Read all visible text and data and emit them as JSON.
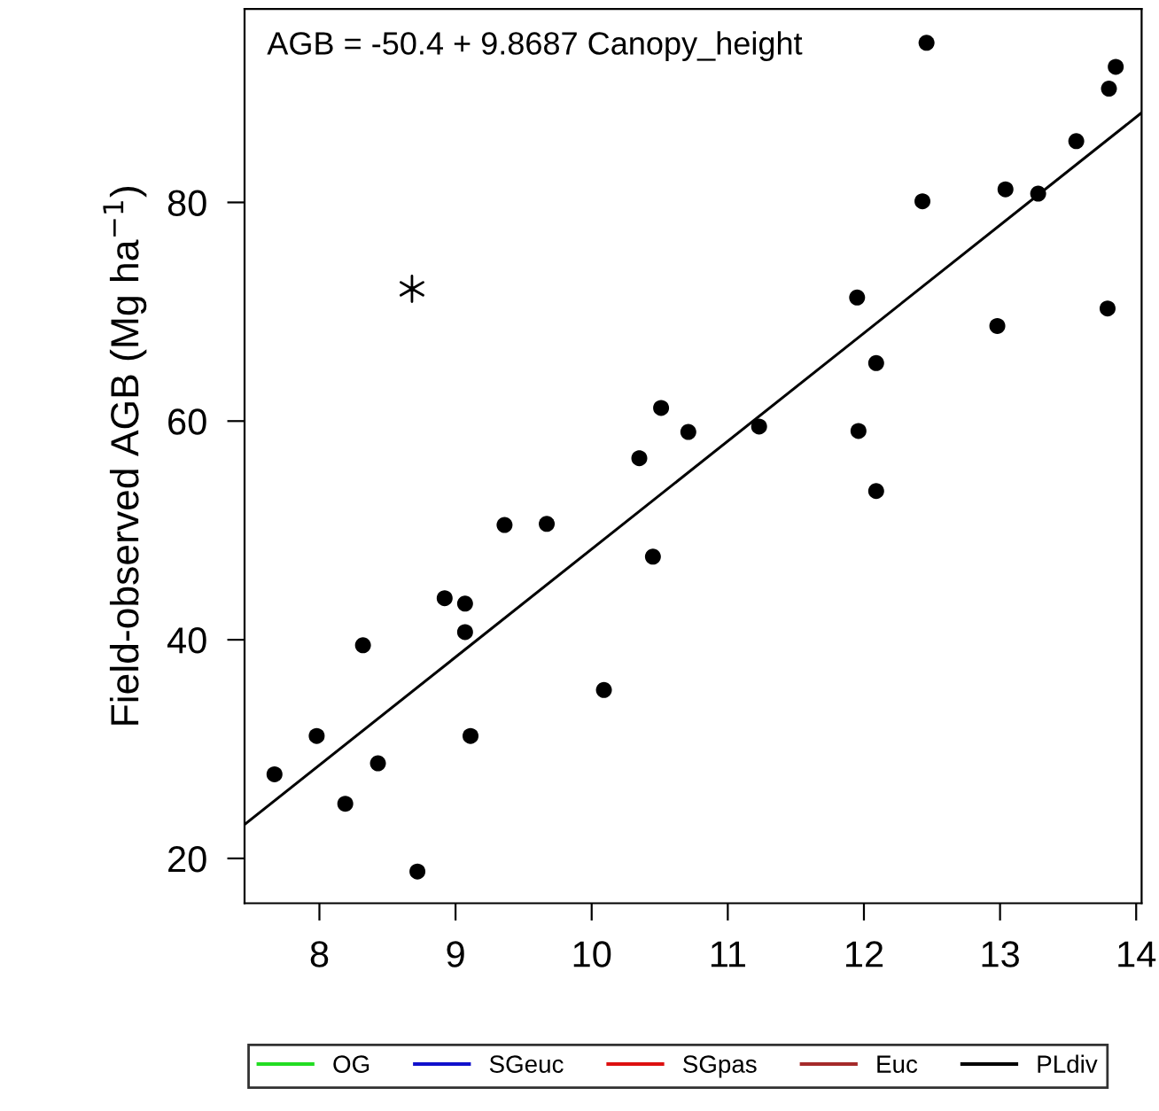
{
  "chart_data": {
    "type": "scatter",
    "ylabel": "Field-observed AGB (Mg ha$^{−1}$)",
    "annotations": [
      "AGB = -50.4 + 9.8687 Canopy_height"
    ],
    "xlim": [
      7.45,
      14.04
    ],
    "ylim": [
      15.9,
      97.7
    ],
    "xticks": [
      8,
      9,
      10,
      11,
      12,
      13,
      14
    ],
    "yticks": [
      20,
      40,
      60,
      80
    ],
    "grid": false,
    "legend": "bottom",
    "series": [
      {
        "marker": "circle",
        "color": "#000000",
        "x": [
          12.46,
          13.85,
          13.8,
          13.56,
          12.43,
          13.04,
          13.28,
          11.95,
          13.79,
          12.98,
          12.09,
          10.51,
          10.71,
          11.23,
          11.96,
          10.35,
          12.09,
          9.36,
          9.67,
          10.45,
          8.92,
          9.07,
          9.07,
          8.32,
          10.09,
          7.98,
          9.11,
          7.67,
          8.43,
          8.19,
          8.72
        ],
        "values": [
          94.6,
          92.4,
          90.4,
          85.6,
          80.1,
          81.2,
          80.8,
          71.3,
          70.3,
          68.7,
          65.3,
          61.2,
          59.0,
          59.5,
          59.1,
          56.6,
          53.6,
          50.5,
          50.6,
          47.6,
          43.8,
          43.3,
          40.7,
          39.5,
          35.4,
          31.2,
          31.2,
          27.7,
          28.7,
          25.0,
          18.8
        ]
      },
      {
        "marker": "cross",
        "color": "#000000",
        "x": [
          8.68
        ],
        "values": [
          72.1
        ]
      },
      {
        "type": "line",
        "marker": "none",
        "color": "#000000",
        "x": [
          7.45,
          14.04
        ],
        "values": [
          23.1,
          88.2
        ]
      },
      {
        "type": "line",
        "name": "OG",
        "color": "#22dd22"
      },
      {
        "type": "line",
        "name": "SGeuc",
        "color": "#1111cc"
      },
      {
        "type": "line",
        "name": "SGpas",
        "color": "#dd1111"
      },
      {
        "type": "line",
        "name": "Euc",
        "color": "#a52a2a"
      },
      {
        "type": "line",
        "name": "PLdiv",
        "color": "#000000"
      }
    ]
  }
}
